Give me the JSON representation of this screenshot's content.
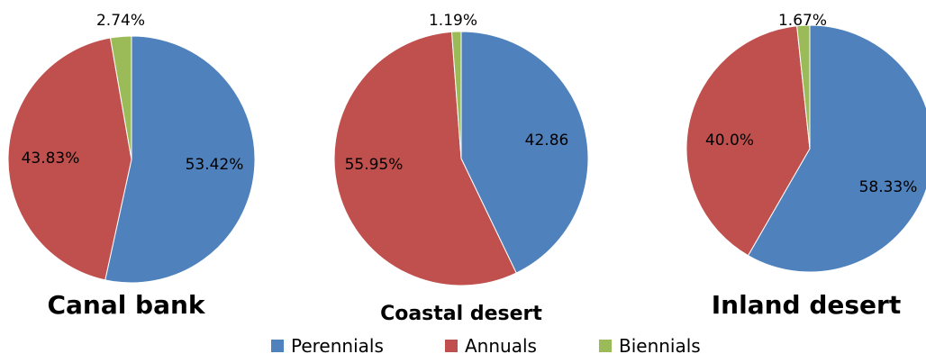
{
  "chart_data": [
    {
      "type": "pie",
      "title": "Canal bank",
      "categories": [
        "Perennials",
        "Annuals",
        "Biennials"
      ],
      "values": [
        53.42,
        43.83,
        2.74
      ],
      "labels": [
        "53.42%",
        "43.83%",
        "2.74%"
      ]
    },
    {
      "type": "pie",
      "title": "Coastal desert",
      "categories": [
        "Perennials",
        "Annuals",
        "Biennials"
      ],
      "values": [
        42.86,
        55.95,
        1.19
      ],
      "labels": [
        "42.86",
        "55.95%",
        "1.19%"
      ]
    },
    {
      "type": "pie",
      "title": "Inland desert",
      "categories": [
        "Perennials",
        "Annuals",
        "Biennials"
      ],
      "values": [
        58.33,
        40.0,
        1.67
      ],
      "labels": [
        "58.33%",
        "40.0%",
        "1.67%"
      ]
    }
  ],
  "legend": {
    "placement": "bottom",
    "items": [
      {
        "name": "Perennials",
        "color": "#4f81bd"
      },
      {
        "name": "Annuals",
        "color": "#c0504d"
      },
      {
        "name": "Biennials",
        "color": "#9bbb59"
      }
    ]
  },
  "colors": {
    "perennials": "#4f81bd",
    "annuals": "#c0504d",
    "biennials": "#9bbb59",
    "slice_border": "#ffffff"
  }
}
